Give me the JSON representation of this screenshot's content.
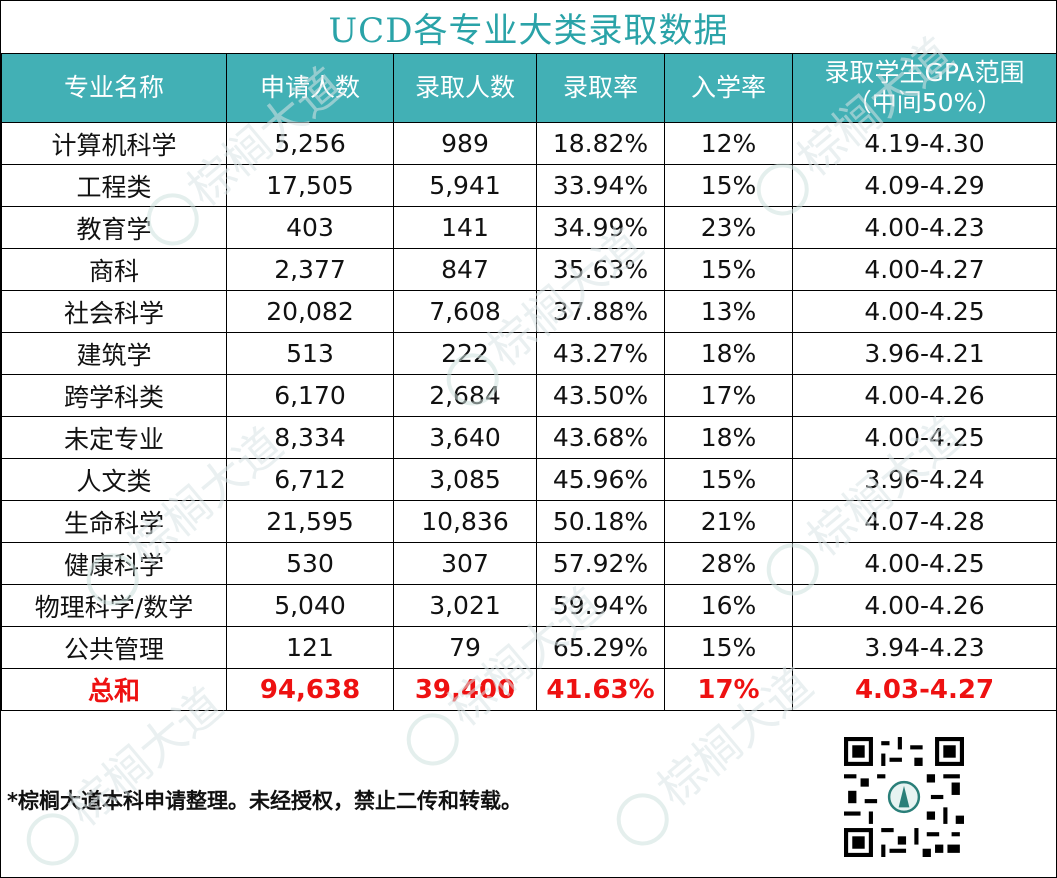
{
  "title": "UCD各专业大类录取数据",
  "headers": [
    "专业名称",
    "申请人数",
    "录取人数",
    "录取率",
    "入学率",
    "录取学生GPA范围\n（中间50%）"
  ],
  "rows": [
    [
      "计算机科学",
      "5,256",
      "989",
      "18.82%",
      "12%",
      "4.19-4.30"
    ],
    [
      "工程类",
      "17,505",
      "5,941",
      "33.94%",
      "15%",
      "4.09-4.29"
    ],
    [
      "教育学",
      "403",
      "141",
      "34.99%",
      "23%",
      "4.00-4.23"
    ],
    [
      "商科",
      "2,377",
      "847",
      "35.63%",
      "15%",
      "4.00-4.27"
    ],
    [
      "社会科学",
      "20,082",
      "7,608",
      "37.88%",
      "13%",
      "4.00-4.25"
    ],
    [
      "建筑学",
      "513",
      "222",
      "43.27%",
      "18%",
      "3.96-4.21"
    ],
    [
      "跨学科类",
      "6,170",
      "2,684",
      "43.50%",
      "17%",
      "4.00-4.26"
    ],
    [
      "未定专业",
      "8,334",
      "3,640",
      "43.68%",
      "18%",
      "4.00-4.25"
    ],
    [
      "人文类",
      "6,712",
      "3,085",
      "45.96%",
      "15%",
      "3.96-4.24"
    ],
    [
      "生命科学",
      "21,595",
      "10,836",
      "50.18%",
      "21%",
      "4.07-4.28"
    ],
    [
      "健康科学",
      "530",
      "307",
      "57.92%",
      "28%",
      "4.00-4.25"
    ],
    [
      "物理科学/数学",
      "5,040",
      "3,021",
      "59.94%",
      "16%",
      "4.00-4.26"
    ],
    [
      "公共管理",
      "121",
      "79",
      "65.29%",
      "15%",
      "3.94-4.23"
    ]
  ],
  "total": [
    "总和",
    "94,638",
    "39,400",
    "41.63%",
    "17%",
    "4.03-4.27"
  ],
  "footer_note": "*棕榈大道本科申请整理。未经授权，禁止二传和转载。",
  "watermark_text": "棕榈大道",
  "colors": {
    "title": "#2aa3a8",
    "header_bg": "#42b0b5",
    "total_text": "#ee1111"
  },
  "icons": [
    "qr-code-icon",
    "watermark-logo-icon"
  ]
}
